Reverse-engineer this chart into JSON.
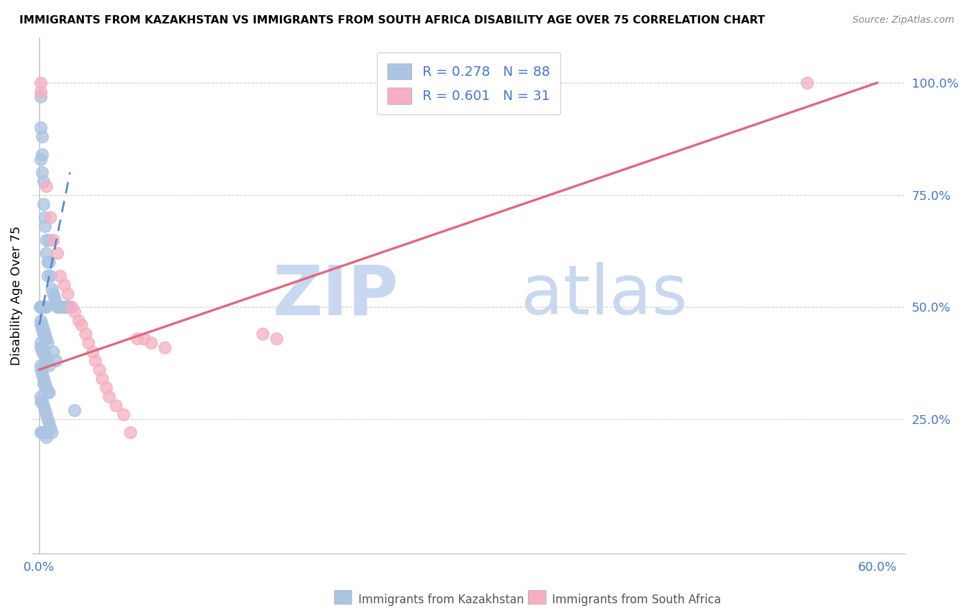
{
  "title": "IMMIGRANTS FROM KAZAKHSTAN VS IMMIGRANTS FROM SOUTH AFRICA DISABILITY AGE OVER 75 CORRELATION CHART",
  "source": "Source: ZipAtlas.com",
  "ylabel": "Disability Age Over 75",
  "xlim": [
    -0.005,
    0.62
  ],
  "ylim": [
    -0.05,
    1.1
  ],
  "xtick_positions": [
    0.0,
    0.1,
    0.2,
    0.3,
    0.4,
    0.5,
    0.6
  ],
  "xticklabels_show": [
    "0.0%",
    "60.0%"
  ],
  "yticks_right": [
    0.25,
    0.5,
    0.75,
    1.0
  ],
  "ytick_labels_right": [
    "25.0%",
    "50.0%",
    "75.0%",
    "100.0%"
  ],
  "kazakhstan_color": "#aac4e2",
  "south_africa_color": "#f5afc0",
  "kazakhstan_line_color": "#5588cc",
  "south_africa_line_color": "#e06880",
  "kazakhstan_R": 0.278,
  "kazakhstan_N": 88,
  "south_africa_R": 0.601,
  "south_africa_N": 31,
  "legend_text_color": "#4477cc",
  "watermark_zip": "ZIP",
  "watermark_atlas": "atlas",
  "watermark_color": "#c8d8f0",
  "background_color": "#ffffff",
  "grid_color": "#cccccc",
  "tick_color": "#4477cc",
  "kazakhstan_x": [
    0.001,
    0.001,
    0.001,
    0.002,
    0.002,
    0.002,
    0.003,
    0.003,
    0.004,
    0.004,
    0.005,
    0.005,
    0.006,
    0.006,
    0.007,
    0.007,
    0.008,
    0.009,
    0.01,
    0.011,
    0.012,
    0.013,
    0.014,
    0.015,
    0.016,
    0.017,
    0.018,
    0.019,
    0.02,
    0.021,
    0.0005,
    0.001,
    0.001,
    0.0015,
    0.002,
    0.0025,
    0.003,
    0.0035,
    0.004,
    0.005,
    0.001,
    0.001,
    0.002,
    0.002,
    0.003,
    0.003,
    0.004,
    0.004,
    0.005,
    0.006,
    0.001,
    0.001,
    0.002,
    0.002,
    0.003,
    0.004,
    0.005,
    0.005,
    0.006,
    0.007,
    0.001,
    0.001,
    0.002,
    0.002,
    0.003,
    0.003,
    0.004,
    0.005,
    0.006,
    0.007,
    0.001,
    0.001,
    0.002,
    0.003,
    0.004,
    0.005,
    0.006,
    0.007,
    0.008,
    0.009,
    0.001,
    0.002,
    0.003,
    0.004,
    0.005,
    0.01,
    0.012,
    0.025
  ],
  "kazakhstan_y": [
    0.97,
    0.9,
    0.83,
    0.88,
    0.84,
    0.8,
    0.78,
    0.73,
    0.7,
    0.68,
    0.65,
    0.62,
    0.6,
    0.57,
    0.65,
    0.6,
    0.57,
    0.54,
    0.53,
    0.52,
    0.51,
    0.5,
    0.5,
    0.5,
    0.5,
    0.5,
    0.5,
    0.5,
    0.5,
    0.5,
    0.5,
    0.5,
    0.5,
    0.5,
    0.5,
    0.5,
    0.5,
    0.5,
    0.5,
    0.5,
    0.47,
    0.46,
    0.46,
    0.45,
    0.45,
    0.44,
    0.44,
    0.43,
    0.43,
    0.42,
    0.42,
    0.41,
    0.41,
    0.4,
    0.4,
    0.39,
    0.39,
    0.38,
    0.38,
    0.37,
    0.37,
    0.36,
    0.36,
    0.35,
    0.34,
    0.33,
    0.33,
    0.32,
    0.31,
    0.31,
    0.3,
    0.29,
    0.29,
    0.28,
    0.27,
    0.26,
    0.25,
    0.24,
    0.23,
    0.22,
    0.22,
    0.22,
    0.22,
    0.22,
    0.21,
    0.4,
    0.38,
    0.27
  ],
  "south_africa_x": [
    0.001,
    0.001,
    0.005,
    0.008,
    0.01,
    0.013,
    0.015,
    0.018,
    0.02,
    0.023,
    0.025,
    0.028,
    0.03,
    0.033,
    0.035,
    0.038,
    0.04,
    0.043,
    0.045,
    0.048,
    0.05,
    0.055,
    0.06,
    0.065,
    0.07,
    0.075,
    0.08,
    0.09,
    0.16,
    0.17,
    0.55
  ],
  "south_africa_y": [
    1.0,
    0.98,
    0.77,
    0.7,
    0.65,
    0.62,
    0.57,
    0.55,
    0.53,
    0.5,
    0.49,
    0.47,
    0.46,
    0.44,
    0.42,
    0.4,
    0.38,
    0.36,
    0.34,
    0.32,
    0.3,
    0.28,
    0.26,
    0.22,
    0.43,
    0.43,
    0.42,
    0.41,
    0.44,
    0.43,
    1.0
  ],
  "kaz_line_x0": 0.0,
  "kaz_line_y0": 0.46,
  "kaz_line_x1": 0.022,
  "kaz_line_y1": 0.8,
  "sa_line_x0": 0.0,
  "sa_line_y0": 0.36,
  "sa_line_x1": 0.6,
  "sa_line_y1": 1.0
}
